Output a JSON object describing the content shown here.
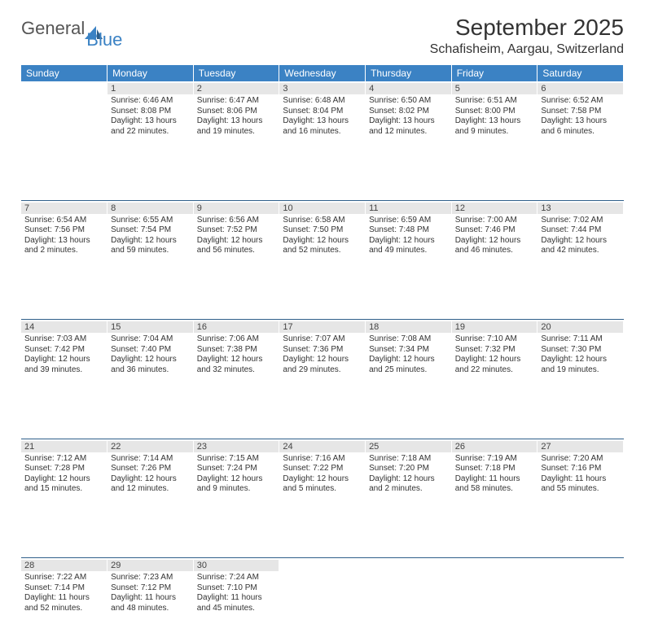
{
  "brand": {
    "word1": "General",
    "word2": "Blue"
  },
  "title": "September 2025",
  "location": "Schafisheim, Aargau, Switzerland",
  "columns": [
    "Sunday",
    "Monday",
    "Tuesday",
    "Wednesday",
    "Thursday",
    "Friday",
    "Saturday"
  ],
  "colors": {
    "header_bg": "#3b82c4",
    "header_fg": "#ffffff",
    "daynum_bg": "#e6e6e6",
    "text": "#333333",
    "rule": "#2f5f8a"
  },
  "weeks": [
    [
      {
        "n": "",
        "sr": "",
        "ss": "",
        "dl": ""
      },
      {
        "n": "1",
        "sr": "Sunrise: 6:46 AM",
        "ss": "Sunset: 8:08 PM",
        "dl": "Daylight: 13 hours and 22 minutes."
      },
      {
        "n": "2",
        "sr": "Sunrise: 6:47 AM",
        "ss": "Sunset: 8:06 PM",
        "dl": "Daylight: 13 hours and 19 minutes."
      },
      {
        "n": "3",
        "sr": "Sunrise: 6:48 AM",
        "ss": "Sunset: 8:04 PM",
        "dl": "Daylight: 13 hours and 16 minutes."
      },
      {
        "n": "4",
        "sr": "Sunrise: 6:50 AM",
        "ss": "Sunset: 8:02 PM",
        "dl": "Daylight: 13 hours and 12 minutes."
      },
      {
        "n": "5",
        "sr": "Sunrise: 6:51 AM",
        "ss": "Sunset: 8:00 PM",
        "dl": "Daylight: 13 hours and 9 minutes."
      },
      {
        "n": "6",
        "sr": "Sunrise: 6:52 AM",
        "ss": "Sunset: 7:58 PM",
        "dl": "Daylight: 13 hours and 6 minutes."
      }
    ],
    [
      {
        "n": "7",
        "sr": "Sunrise: 6:54 AM",
        "ss": "Sunset: 7:56 PM",
        "dl": "Daylight: 13 hours and 2 minutes."
      },
      {
        "n": "8",
        "sr": "Sunrise: 6:55 AM",
        "ss": "Sunset: 7:54 PM",
        "dl": "Daylight: 12 hours and 59 minutes."
      },
      {
        "n": "9",
        "sr": "Sunrise: 6:56 AM",
        "ss": "Sunset: 7:52 PM",
        "dl": "Daylight: 12 hours and 56 minutes."
      },
      {
        "n": "10",
        "sr": "Sunrise: 6:58 AM",
        "ss": "Sunset: 7:50 PM",
        "dl": "Daylight: 12 hours and 52 minutes."
      },
      {
        "n": "11",
        "sr": "Sunrise: 6:59 AM",
        "ss": "Sunset: 7:48 PM",
        "dl": "Daylight: 12 hours and 49 minutes."
      },
      {
        "n": "12",
        "sr": "Sunrise: 7:00 AM",
        "ss": "Sunset: 7:46 PM",
        "dl": "Daylight: 12 hours and 46 minutes."
      },
      {
        "n": "13",
        "sr": "Sunrise: 7:02 AM",
        "ss": "Sunset: 7:44 PM",
        "dl": "Daylight: 12 hours and 42 minutes."
      }
    ],
    [
      {
        "n": "14",
        "sr": "Sunrise: 7:03 AM",
        "ss": "Sunset: 7:42 PM",
        "dl": "Daylight: 12 hours and 39 minutes."
      },
      {
        "n": "15",
        "sr": "Sunrise: 7:04 AM",
        "ss": "Sunset: 7:40 PM",
        "dl": "Daylight: 12 hours and 36 minutes."
      },
      {
        "n": "16",
        "sr": "Sunrise: 7:06 AM",
        "ss": "Sunset: 7:38 PM",
        "dl": "Daylight: 12 hours and 32 minutes."
      },
      {
        "n": "17",
        "sr": "Sunrise: 7:07 AM",
        "ss": "Sunset: 7:36 PM",
        "dl": "Daylight: 12 hours and 29 minutes."
      },
      {
        "n": "18",
        "sr": "Sunrise: 7:08 AM",
        "ss": "Sunset: 7:34 PM",
        "dl": "Daylight: 12 hours and 25 minutes."
      },
      {
        "n": "19",
        "sr": "Sunrise: 7:10 AM",
        "ss": "Sunset: 7:32 PM",
        "dl": "Daylight: 12 hours and 22 minutes."
      },
      {
        "n": "20",
        "sr": "Sunrise: 7:11 AM",
        "ss": "Sunset: 7:30 PM",
        "dl": "Daylight: 12 hours and 19 minutes."
      }
    ],
    [
      {
        "n": "21",
        "sr": "Sunrise: 7:12 AM",
        "ss": "Sunset: 7:28 PM",
        "dl": "Daylight: 12 hours and 15 minutes."
      },
      {
        "n": "22",
        "sr": "Sunrise: 7:14 AM",
        "ss": "Sunset: 7:26 PM",
        "dl": "Daylight: 12 hours and 12 minutes."
      },
      {
        "n": "23",
        "sr": "Sunrise: 7:15 AM",
        "ss": "Sunset: 7:24 PM",
        "dl": "Daylight: 12 hours and 9 minutes."
      },
      {
        "n": "24",
        "sr": "Sunrise: 7:16 AM",
        "ss": "Sunset: 7:22 PM",
        "dl": "Daylight: 12 hours and 5 minutes."
      },
      {
        "n": "25",
        "sr": "Sunrise: 7:18 AM",
        "ss": "Sunset: 7:20 PM",
        "dl": "Daylight: 12 hours and 2 minutes."
      },
      {
        "n": "26",
        "sr": "Sunrise: 7:19 AM",
        "ss": "Sunset: 7:18 PM",
        "dl": "Daylight: 11 hours and 58 minutes."
      },
      {
        "n": "27",
        "sr": "Sunrise: 7:20 AM",
        "ss": "Sunset: 7:16 PM",
        "dl": "Daylight: 11 hours and 55 minutes."
      }
    ],
    [
      {
        "n": "28",
        "sr": "Sunrise: 7:22 AM",
        "ss": "Sunset: 7:14 PM",
        "dl": "Daylight: 11 hours and 52 minutes."
      },
      {
        "n": "29",
        "sr": "Sunrise: 7:23 AM",
        "ss": "Sunset: 7:12 PM",
        "dl": "Daylight: 11 hours and 48 minutes."
      },
      {
        "n": "30",
        "sr": "Sunrise: 7:24 AM",
        "ss": "Sunset: 7:10 PM",
        "dl": "Daylight: 11 hours and 45 minutes."
      },
      {
        "n": "",
        "sr": "",
        "ss": "",
        "dl": ""
      },
      {
        "n": "",
        "sr": "",
        "ss": "",
        "dl": ""
      },
      {
        "n": "",
        "sr": "",
        "ss": "",
        "dl": ""
      },
      {
        "n": "",
        "sr": "",
        "ss": "",
        "dl": ""
      }
    ]
  ]
}
